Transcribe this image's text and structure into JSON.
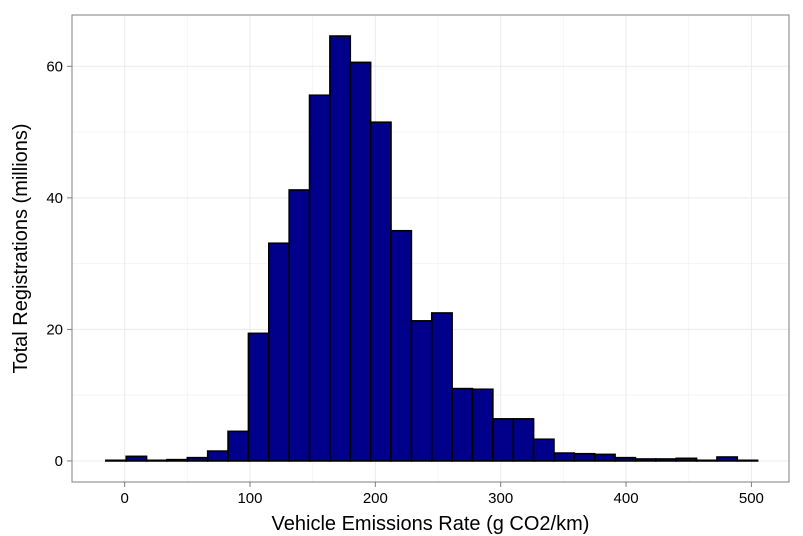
{
  "chart_data": {
    "type": "bar",
    "title": "",
    "xlabel": "Vehicle Emissions Rate (g CO2/km)",
    "ylabel": "Total Registrations (millions)",
    "bin_width": 16.25,
    "bin_starts": [
      -15,
      1.25,
      17.5,
      33.75,
      50,
      66.25,
      82.5,
      98.75,
      115,
      131.25,
      147.5,
      163.75,
      180,
      196.25,
      212.5,
      228.75,
      245,
      261.25,
      277.5,
      293.75,
      310,
      326.25,
      342.5,
      358.75,
      375,
      391.25,
      407.5,
      423.75,
      440,
      456.25,
      472.5,
      488.75
    ],
    "values": [
      0.1,
      0.7,
      0.1,
      0.2,
      0.5,
      1.5,
      4.5,
      19.4,
      33.1,
      41.2,
      55.6,
      64.6,
      60.6,
      51.5,
      35.0,
      21.3,
      22.5,
      11.0,
      10.9,
      6.4,
      6.4,
      3.3,
      1.2,
      1.1,
      1.0,
      0.5,
      0.3,
      0.3,
      0.4,
      0.1,
      0.6,
      0.1
    ],
    "xlim": [
      -42,
      530
    ],
    "ylim": [
      -3.2,
      67.8
    ],
    "xticks": [
      0,
      100,
      200,
      300,
      400,
      500
    ],
    "yticks": [
      0,
      20,
      40,
      60
    ],
    "grid": true,
    "colors": {
      "bar_fill": "#00008B",
      "bar_stroke": "#000000",
      "grid_major": "#ebebeb",
      "grid_minor": "#f5f5f5",
      "panel_border": "#7f7f7f",
      "tick_text": "#000000"
    }
  }
}
